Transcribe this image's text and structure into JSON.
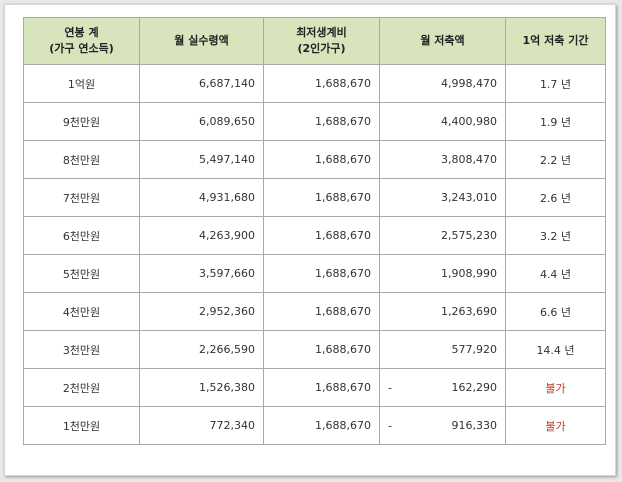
{
  "table": {
    "headers": [
      {
        "line1": "연봉 계",
        "line2": "(가구 연소득)"
      },
      {
        "line1": "월 실수령액",
        "line2": ""
      },
      {
        "line1": "최저생계비",
        "line2": "(2인가구)"
      },
      {
        "line1": "월 저축액",
        "line2": ""
      },
      {
        "line1": "1억 저축 기간",
        "line2": ""
      }
    ],
    "rows": [
      {
        "income": "1억원",
        "net": "6,687,140",
        "min": "1,688,670",
        "neg": "",
        "saving": "4,998,470",
        "period": "1.7 년"
      },
      {
        "income": "9천만원",
        "net": "6,089,650",
        "min": "1,688,670",
        "neg": "",
        "saving": "4,400,980",
        "period": "1.9 년"
      },
      {
        "income": "8천만원",
        "net": "5,497,140",
        "min": "1,688,670",
        "neg": "",
        "saving": "3,808,470",
        "period": "2.2 년"
      },
      {
        "income": "7천만원",
        "net": "4,931,680",
        "min": "1,688,670",
        "neg": "",
        "saving": "3,243,010",
        "period": "2.6 년"
      },
      {
        "income": "6천만원",
        "net": "4,263,900",
        "min": "1,688,670",
        "neg": "",
        "saving": "2,575,230",
        "period": "3.2 년"
      },
      {
        "income": "5천만원",
        "net": "3,597,660",
        "min": "1,688,670",
        "neg": "",
        "saving": "1,908,990",
        "period": "4.4 년"
      },
      {
        "income": "4천만원",
        "net": "2,952,360",
        "min": "1,688,670",
        "neg": "",
        "saving": "1,263,690",
        "period": "6.6 년"
      },
      {
        "income": "3천만원",
        "net": "2,266,590",
        "min": "1,688,670",
        "neg": "",
        "saving": "577,920",
        "period": "14.4 년"
      },
      {
        "income": "2천만원",
        "net": "1,526,380",
        "min": "1,688,670",
        "neg": "-",
        "saving": "162,290",
        "period": "불가"
      },
      {
        "income": "1천만원",
        "net": "772,340",
        "min": "1,688,670",
        "neg": "-",
        "saving": "916,330",
        "period": "불가"
      }
    ]
  },
  "colors": {
    "header_bg": "#d8e4bc",
    "border": "#a9a9a9",
    "warning_text": "#c0392b"
  }
}
